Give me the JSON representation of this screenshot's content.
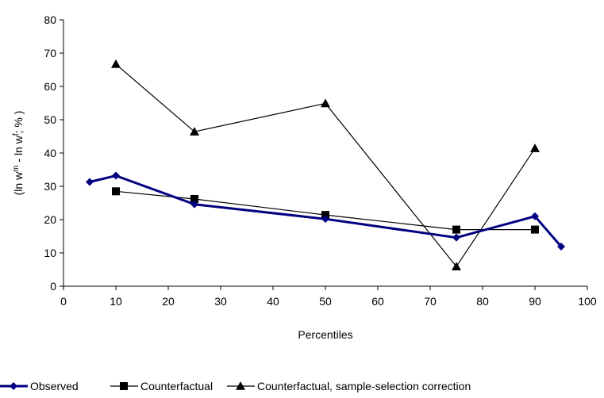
{
  "chart_data": {
    "type": "line",
    "title": "",
    "xlabel": "Percentiles",
    "ylabel": {
      "prefix": "(ln w",
      "sup1": "m",
      "mid": " - ln w",
      "sup2": "f",
      "suffix": "; % )"
    },
    "xlim": [
      0,
      100
    ],
    "ylim": [
      0,
      80
    ],
    "xticks": [
      0,
      10,
      20,
      30,
      40,
      50,
      60,
      70,
      80,
      90,
      100
    ],
    "yticks": [
      0,
      10,
      20,
      30,
      40,
      50,
      60,
      70,
      80
    ],
    "grid": false,
    "legend_position": "bottom",
    "series": [
      {
        "name": "Observed",
        "color": "#000080",
        "marker": "diamond",
        "x": [
          5,
          10,
          25,
          50,
          75,
          90,
          95
        ],
        "y": [
          31.3,
          33.2,
          24.6,
          20.2,
          14.6,
          21.0,
          11.9
        ]
      },
      {
        "name": "Counterfactual",
        "color": "#000000",
        "marker": "square",
        "x": [
          10,
          25,
          50,
          75,
          90
        ],
        "y": [
          28.5,
          26.2,
          21.4,
          17.0,
          17.0
        ]
      },
      {
        "name": "Counterfactual, sample-selection correction",
        "color": "#000000",
        "marker": "triangle",
        "x": [
          10,
          25,
          50,
          75,
          90
        ],
        "y": [
          66.7,
          46.4,
          54.9,
          5.9,
          41.4
        ]
      }
    ]
  }
}
